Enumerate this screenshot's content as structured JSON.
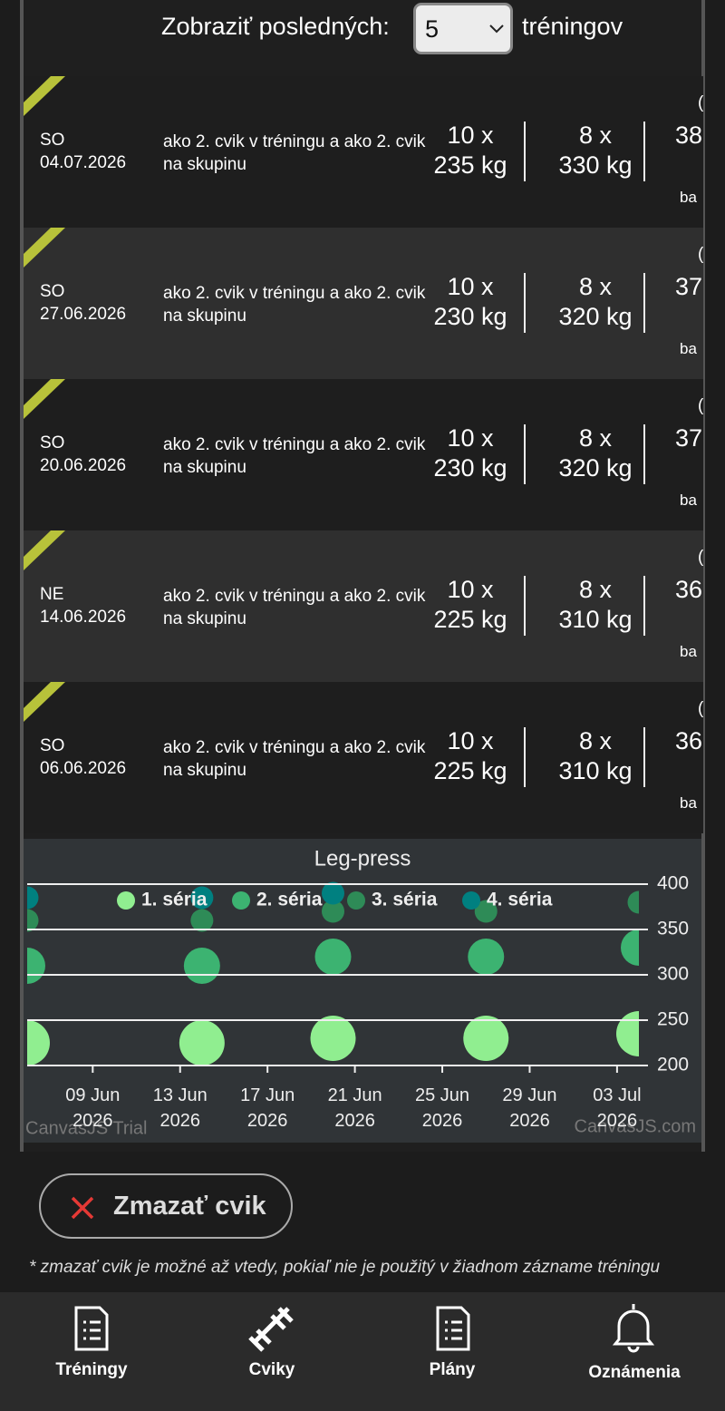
{
  "filter": {
    "label_before": "Zobraziť posledných:",
    "selected": "5",
    "label_after": "tréningov"
  },
  "workouts": [
    {
      "day": "SO",
      "date": "04.07.2026",
      "note": "ako 2. cvik v tréningu a ako 2. cvik na skupinu",
      "sets": [
        {
          "reps": "10 x",
          "weight": "235 kg"
        },
        {
          "reps": "8 x",
          "weight": "330 kg"
        }
      ],
      "partial_column": {
        "top": "(",
        "value": "38",
        "bottom": "ba"
      }
    },
    {
      "day": "SO",
      "date": "27.06.2026",
      "note": "ako 2. cvik v tréningu a ako 2. cvik na skupinu",
      "sets": [
        {
          "reps": "10 x",
          "weight": "230 kg"
        },
        {
          "reps": "8 x",
          "weight": "320 kg"
        }
      ],
      "partial_column": {
        "top": "(",
        "value": "37",
        "bottom": "ba"
      }
    },
    {
      "day": "SO",
      "date": "20.06.2026",
      "note": "ako 2. cvik v tréningu a ako 2. cvik na skupinu",
      "sets": [
        {
          "reps": "10 x",
          "weight": "230 kg"
        },
        {
          "reps": "8 x",
          "weight": "320 kg"
        }
      ],
      "partial_column": {
        "top": "(",
        "value": "37",
        "bottom": "ba"
      }
    },
    {
      "day": "NE",
      "date": "14.06.2026",
      "note": "ako 2. cvik v tréningu a ako 2. cvik na skupinu",
      "sets": [
        {
          "reps": "10 x",
          "weight": "225 kg"
        },
        {
          "reps": "8 x",
          "weight": "310 kg"
        }
      ],
      "partial_column": {
        "top": "(",
        "value": "36",
        "bottom": "ba"
      }
    },
    {
      "day": "SO",
      "date": "06.06.2026",
      "note": "ako 2. cvik v tréningu a ako 2. cvik na skupinu",
      "sets": [
        {
          "reps": "10 x",
          "weight": "225 kg"
        },
        {
          "reps": "8 x",
          "weight": "310 kg"
        }
      ],
      "partial_column": {
        "top": "(",
        "value": "36",
        "bottom": "ba"
      }
    }
  ],
  "chart_data": {
    "type": "bubble",
    "title": "Leg-press",
    "x": [
      "2026-06-06",
      "2026-06-14",
      "2026-06-20",
      "2026-06-27",
      "2026-07-04"
    ],
    "series": [
      {
        "name": "1. séria",
        "color": "#90ee90",
        "values": [
          225,
          225,
          230,
          230,
          235
        ],
        "z": [
          10,
          10,
          10,
          10,
          10
        ]
      },
      {
        "name": "2. séria",
        "color": "#3cb371",
        "values": [
          310,
          310,
          320,
          320,
          330
        ],
        "z": [
          8,
          8,
          8,
          8,
          8
        ]
      },
      {
        "name": "3. séria",
        "color": "#2e8b57",
        "values": [
          360,
          360,
          370,
          370,
          380
        ],
        "z": [
          5,
          5,
          5,
          5,
          5
        ]
      },
      {
        "name": "4. séria",
        "color": "#008080",
        "values": [
          385,
          385,
          390,
          null,
          null
        ],
        "z": [
          5,
          5,
          5,
          null,
          null
        ]
      }
    ],
    "xlim": [
      "2026-06-06",
      "2026-07-04"
    ],
    "xticks": [
      {
        "value": "2026-06-09",
        "label": "09 Jun 2026"
      },
      {
        "value": "2026-06-13",
        "label": "13 Jun 2026"
      },
      {
        "value": "2026-06-17",
        "label": "17 Jun 2026"
      },
      {
        "value": "2026-06-21",
        "label": "21 Jun 2026"
      },
      {
        "value": "2026-06-25",
        "label": "25 Jun 2026"
      },
      {
        "value": "2026-06-29",
        "label": "29 Jun 2026"
      },
      {
        "value": "2026-07-03",
        "label": "03 Jul 2026"
      }
    ],
    "ylim": [
      200,
      400
    ],
    "yticks": [
      200,
      250,
      300,
      350,
      400
    ],
    "grid": true,
    "credits": [
      "CanvasJS Trial",
      "CanvasJS.com"
    ]
  },
  "delete_button": "Zmazať cvik",
  "footnote": "* zmazať cvik je možné až vtedy, pokiaľ nie je použitý v žiadnom zázname tréningu",
  "nav": [
    "Tréningy",
    "Cviky",
    "Plány",
    "Oznámenia"
  ]
}
